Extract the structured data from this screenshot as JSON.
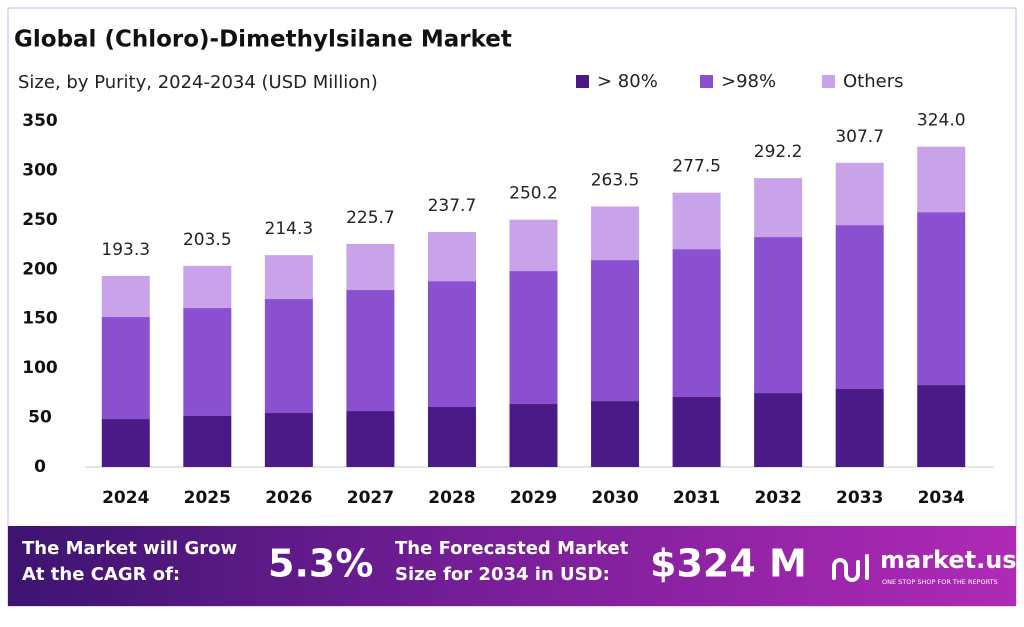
{
  "chart_data": {
    "type": "stacked-bar",
    "title": "Global (Chloro)-Dimethylsilane Market",
    "subtitle": "Size, by Purity, 2024-2034 (USD Million)",
    "categories": [
      "2024",
      "2025",
      "2026",
      "2027",
      "2028",
      "2029",
      "2030",
      "2031",
      "2032",
      "2033",
      "2034"
    ],
    "series": [
      {
        "name": "> 80%",
        "color": "#4a1a86",
        "values": [
          48.5,
          51.6,
          54.6,
          56.6,
          60.7,
          63.7,
          66.7,
          70.8,
          74.8,
          78.9,
          82.9
        ]
      },
      {
        "name": ">98%",
        "color": "#8a50d0",
        "values": [
          103.2,
          109.2,
          115.3,
          122.4,
          127.3,
          134.5,
          142.6,
          149.6,
          157.8,
          165.8,
          174.9
        ]
      },
      {
        "name": "Others",
        "color": "#c9a3ea",
        "values": [
          41.6,
          42.7,
          44.4,
          46.7,
          49.7,
          52.0,
          54.2,
          57.1,
          59.6,
          63.0,
          66.2
        ]
      }
    ],
    "totals": [
      193.3,
      203.5,
      214.3,
      225.7,
      237.7,
      250.2,
      263.5,
      277.5,
      292.2,
      307.7,
      324
    ],
    "total_labels": [
      "193.3",
      "203.5",
      "214.3",
      "225.7",
      "237.7",
      "250.2",
      "263.5",
      "277.5",
      "292.2",
      "307.7",
      "324.0"
    ],
    "ylim": [
      0,
      350
    ],
    "yticks": [
      0,
      50,
      100,
      150,
      200,
      250,
      300,
      350
    ],
    "grid": false,
    "legend": "top-right"
  },
  "footer": {
    "cagr_text": "The Market will Grow At the CAGR of:",
    "cagr_value": "5.3%",
    "forecast_text": "The Forecasted Market Size for 2034 in USD:",
    "forecast_value": "$324 M",
    "brand": "market.us",
    "tagline": "ONE STOP SHOP FOR THE REPORTS"
  }
}
